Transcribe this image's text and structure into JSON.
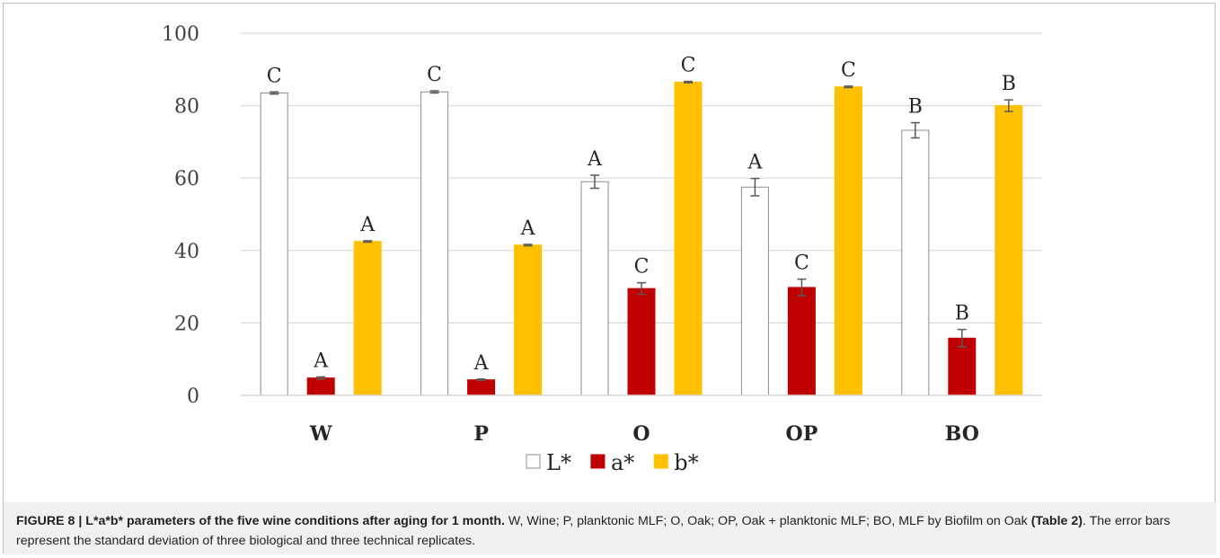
{
  "chart_data": {
    "type": "bar",
    "categories": [
      "W",
      "P",
      "O",
      "OP",
      "BO"
    ],
    "series": [
      {
        "name": "L*",
        "values": [
          83.5,
          83.8,
          59.0,
          57.5,
          73.2
        ],
        "errors": [
          0.3,
          0.3,
          1.8,
          2.4,
          2.1
        ],
        "letters": [
          "C",
          "C",
          "A",
          "A",
          "B"
        ],
        "color": "#ffffff",
        "stroke": "#8c8c8c"
      },
      {
        "name": "a*",
        "values": [
          4.8,
          4.3,
          29.5,
          29.8,
          15.8
        ],
        "errors": [
          0.3,
          0.2,
          1.6,
          2.3,
          2.4
        ],
        "letters": [
          "A",
          "A",
          "C",
          "C",
          "B"
        ],
        "color": "#c00000",
        "stroke": "#c00000"
      },
      {
        "name": "b*",
        "values": [
          42.5,
          41.5,
          86.5,
          85.2,
          80.0
        ],
        "errors": [
          0.2,
          0.2,
          0.2,
          0.2,
          1.6
        ],
        "letters": [
          "A",
          "A",
          "C",
          "C",
          "B"
        ],
        "color": "#ffc000",
        "stroke": "#ffc000"
      }
    ],
    "yticks": [
      0,
      20,
      40,
      60,
      80,
      100
    ],
    "ylim": [
      0,
      100
    ],
    "grid": true,
    "legend": "bottom-center",
    "gridColor": "#d9d9d9",
    "errorColor": "#595959"
  },
  "caption": {
    "label": "FIGURE 8 | L*a*b* parameters of the five wine conditions after aging for 1 month.",
    "text1": " W, Wine; P, planktonic MLF; O, Oak; OP, Oak + planktonic MLF; BO, MLF by Biofilm on Oak ",
    "ref": "(Table 2)",
    "text2": ". The error bars represent the standard deviation of three biological and three technical replicates."
  }
}
